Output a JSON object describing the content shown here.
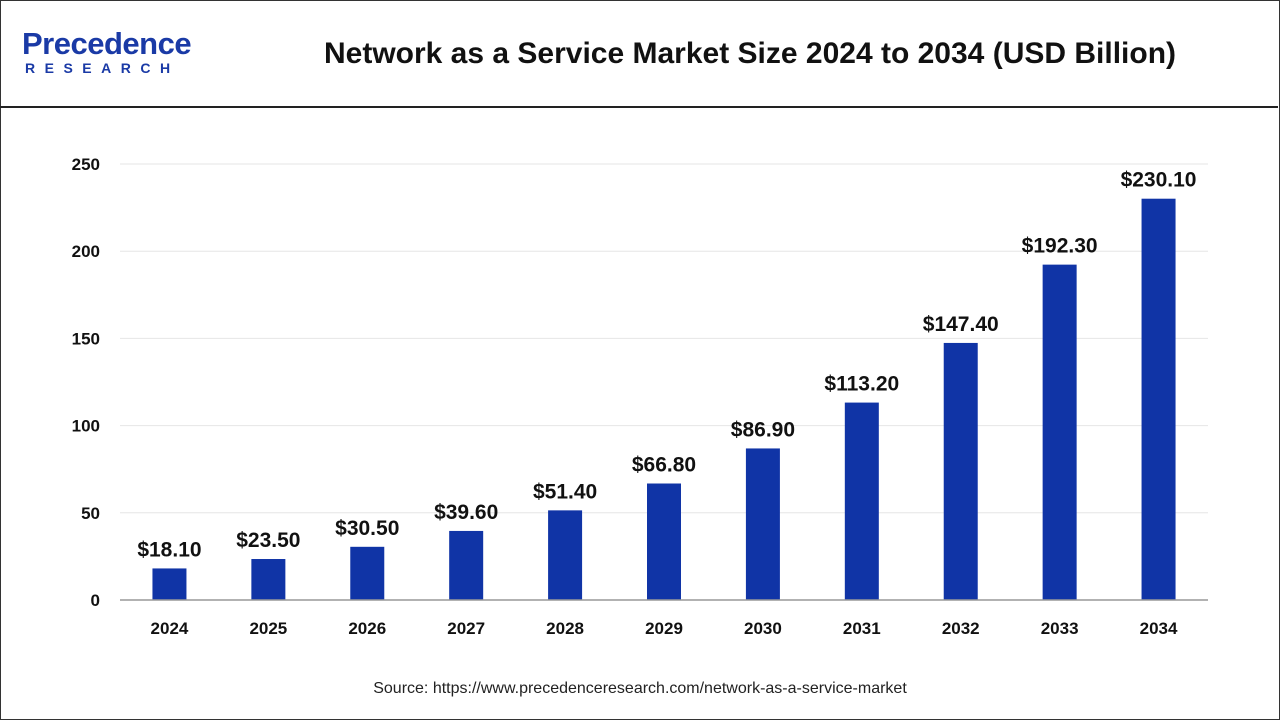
{
  "header": {
    "logo_top": "Precedence",
    "logo_bottom": "RESEARCH",
    "title": "Network as a Service Market Size 2024 to 2034 (USD Billion)"
  },
  "footer": {
    "source": "Source: https://www.precedenceresearch.com/network-as-a-service-market"
  },
  "colors": {
    "bar": "#1034a6",
    "brand": "#1a3aa6",
    "grid": "#e6e6e6",
    "axis": "#999999"
  },
  "chart_data": {
    "type": "bar",
    "title": "Network as a Service Market Size 2024 to 2034 (USD Billion)",
    "categories": [
      "2024",
      "2025",
      "2026",
      "2027",
      "2028",
      "2029",
      "2030",
      "2031",
      "2032",
      "2033",
      "2034"
    ],
    "values": [
      18.1,
      23.5,
      30.5,
      39.6,
      51.4,
      66.8,
      86.9,
      113.2,
      147.4,
      192.3,
      230.1
    ],
    "value_labels": [
      "$18.10",
      "$23.50",
      "$30.50",
      "$39.60",
      "$51.40",
      "$66.80",
      "$86.90",
      "$113.20",
      "$147.40",
      "$192.30",
      "$230.10"
    ],
    "ylim": [
      0,
      250
    ],
    "yticks": [
      0,
      50,
      100,
      150,
      200,
      250
    ],
    "xlabel": "",
    "ylabel": "",
    "grid": true,
    "legend": "none"
  }
}
